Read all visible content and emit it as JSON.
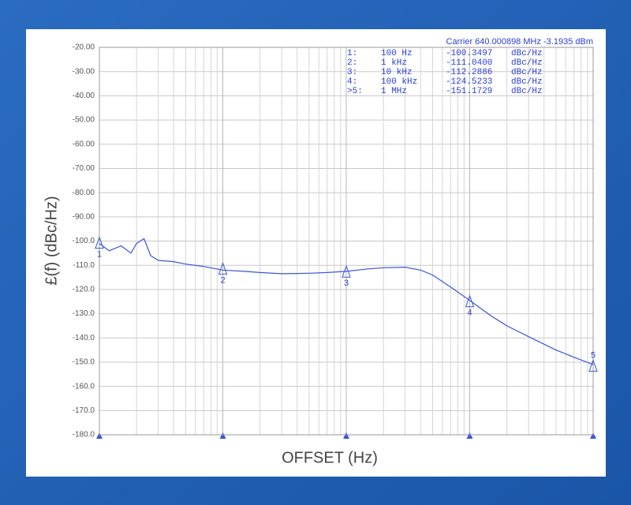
{
  "chart_data": {
    "type": "line",
    "y_label": "£(f) (dBc/Hz)",
    "x_label": "OFFSET (Hz)",
    "carrier": "Carrier 640.000898 MHz   -3.1935 dBm",
    "log_x": true,
    "grid": true,
    "color": "#3a56d4",
    "xlim": [
      100,
      1000000
    ],
    "xticks": [
      100,
      1000,
      10000,
      100000,
      1000000
    ],
    "ylim": [
      -180,
      -20
    ],
    "yticks": [
      {
        "value": -20,
        "label": "-20.00"
      },
      {
        "value": -30,
        "label": "-30.00"
      },
      {
        "value": -40,
        "label": "-40.00"
      },
      {
        "value": -50,
        "label": "-50.00"
      },
      {
        "value": -60,
        "label": "-60.00"
      },
      {
        "value": -70,
        "label": "-70.00"
      },
      {
        "value": -80,
        "label": "-80.00"
      },
      {
        "value": -90,
        "label": "-90.00"
      },
      {
        "value": -100,
        "label": "-100.0"
      },
      {
        "value": -110,
        "label": "-110.0"
      },
      {
        "value": -120,
        "label": "-120.0"
      },
      {
        "value": -130,
        "label": "-130.0"
      },
      {
        "value": -140,
        "label": "-140.0"
      },
      {
        "value": -150,
        "label": "-150.0"
      },
      {
        "value": -160,
        "label": "-160.0"
      },
      {
        "value": -170,
        "label": "-170.0"
      },
      {
        "value": -180,
        "label": "-180.0"
      }
    ],
    "x": [
      100,
      120,
      150,
      180,
      200,
      230,
      260,
      300,
      400,
      500,
      700,
      1000,
      1500,
      2000,
      3000,
      5000,
      7000,
      10000,
      15000,
      20000,
      30000,
      40000,
      50000,
      70000,
      100000,
      150000,
      200000,
      300000,
      500000,
      700000,
      1000000
    ],
    "values": [
      -101,
      -104,
      -102,
      -105,
      -101,
      -99,
      -106,
      -108,
      -108.5,
      -109.5,
      -110.5,
      -112,
      -112.5,
      -113,
      -113.5,
      -113.3,
      -113,
      -112.5,
      -111.5,
      -111,
      -110.8,
      -112,
      -114,
      -119,
      -124.5,
      -131,
      -135,
      -139.5,
      -145,
      -148,
      -151
    ],
    "markers": [
      {
        "label": "1",
        "x": 100,
        "y": -100.3497
      },
      {
        "label": "2",
        "x": 1000,
        "y": -111.04
      },
      {
        "label": "3",
        "x": 10000,
        "y": -112.2886
      },
      {
        "label": "4",
        "x": 100000,
        "y": -124.5233
      },
      {
        "label": "5",
        "x": 1000000,
        "y": -151.1729
      }
    ],
    "table": [
      [
        "1:",
        "100 Hz",
        "-100.3497",
        "dBc/Hz"
      ],
      [
        "2:",
        "1 kHz",
        "-111.0400",
        "dBc/Hz"
      ],
      [
        "3:",
        "10 kHz",
        "-112.2886",
        "dBc/Hz"
      ],
      [
        "4:",
        "100 kHz",
        "-124.5233",
        "dBc/Hz"
      ],
      [
        ">5:",
        "1 MHz",
        "-151.1729",
        "dBc/Hz"
      ]
    ]
  }
}
